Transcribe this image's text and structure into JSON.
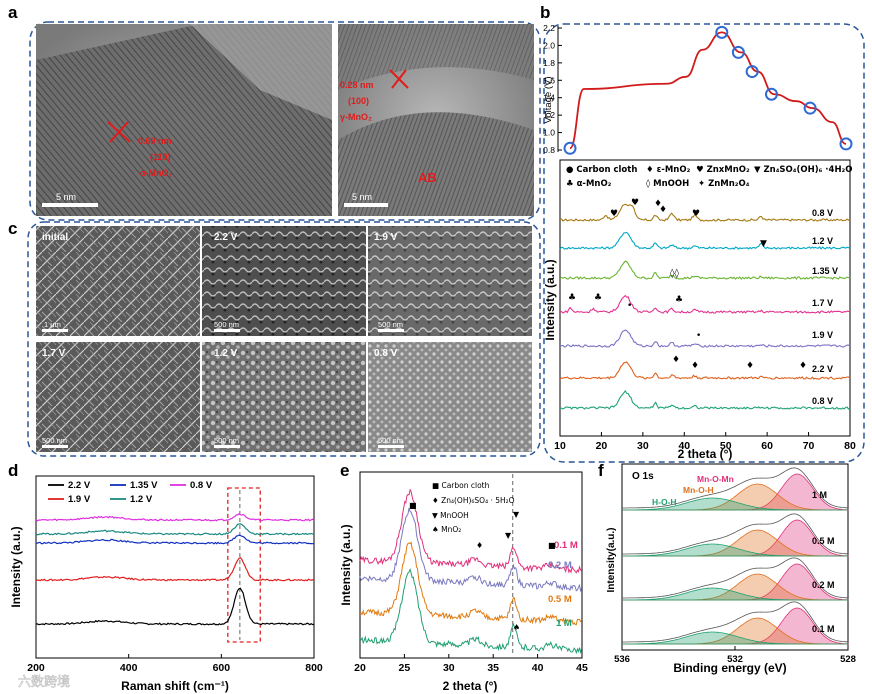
{
  "figure": {
    "panel_letters": [
      "a",
      "b",
      "c",
      "d",
      "e",
      "f"
    ],
    "watermark": "六数跨境"
  },
  "panel_a": {
    "left_image": {
      "annotation": [
        "0.69 nm",
        "(110)",
        "α-MnO₂"
      ],
      "scale_bar": "5 nm"
    },
    "right_image": {
      "annotation": [
        "0.28 nm",
        "(100)",
        "γ-MnO₂"
      ],
      "label": "AB",
      "scale_bar": "5 nm"
    }
  },
  "panel_c": {
    "tiles": [
      {
        "label": "initial",
        "scale_bar": "1 μm"
      },
      {
        "label": "2.2 V",
        "scale_bar": "500 nm"
      },
      {
        "label": "1.9 V",
        "scale_bar": "500 nm"
      },
      {
        "label": "1.7 V",
        "scale_bar": "500 nm"
      },
      {
        "label": "1.2 V",
        "scale_bar": "500 nm"
      },
      {
        "label": "0.8 V",
        "scale_bar": "500 nm"
      }
    ]
  },
  "chart_data": [
    {
      "id": "b-top",
      "type": "line",
      "title": "",
      "xlabel": "",
      "ylabel": "Voltage (V)",
      "ylim": [
        0.8,
        2.2
      ],
      "yticks": [
        "0.8",
        "1.0",
        "1.2",
        "1.4",
        "1.6",
        "1.8",
        "2.0",
        "2.2"
      ],
      "series": [
        {
          "name": "charge-discharge",
          "x": [
            0,
            0.05,
            0.35,
            0.42,
            0.48,
            0.55,
            0.62,
            0.68,
            0.74,
            0.82,
            0.88,
            0.95,
            1.0
          ],
          "y": [
            0.82,
            1.5,
            1.56,
            1.64,
            1.95,
            2.15,
            1.92,
            1.7,
            1.44,
            1.36,
            1.28,
            1.12,
            0.87
          ]
        }
      ],
      "markers": [
        {
          "x": 0.0,
          "y": 0.82
        },
        {
          "x": 0.55,
          "y": 2.15
        },
        {
          "x": 0.61,
          "y": 1.92
        },
        {
          "x": 0.66,
          "y": 1.7
        },
        {
          "x": 0.73,
          "y": 1.44
        },
        {
          "x": 0.87,
          "y": 1.28
        },
        {
          "x": 1.0,
          "y": 0.87
        }
      ]
    },
    {
      "id": "b-bottom",
      "type": "line",
      "xlabel": "2 theta (°)",
      "ylabel": "Intensity (a.u.)",
      "xlim": [
        10,
        80
      ],
      "xticks": [
        "10",
        "20",
        "30",
        "40",
        "50",
        "60",
        "70",
        "80"
      ],
      "legend": [
        {
          "symbol": "●",
          "text": "Carbon cloth"
        },
        {
          "symbol": "♦",
          "text": "ε-MnO₂"
        },
        {
          "symbol": "♥",
          "text": "ZnxMnO₂"
        },
        {
          "symbol": "▼",
          "text": "Zn₄SO₄(OH)₆ ·4H₂O"
        },
        {
          "symbol": "♣",
          "text": "α-MnO₂"
        },
        {
          "symbol": "◊",
          "text": "MnOOH"
        },
        {
          "symbol": "✦",
          "text": "ZnMn₂O₄"
        }
      ],
      "series": [
        {
          "name": "0.8 V",
          "color": "#a57a12"
        },
        {
          "name": "1.2 V",
          "color": "#00a8c8"
        },
        {
          "name": "1.35 V",
          "color": "#6ab52e"
        },
        {
          "name": "1.7 V",
          "color": "#e2338f"
        },
        {
          "name": "1.9 V",
          "color": "#7a72c4"
        },
        {
          "name": "2.2 V",
          "color": "#e0601a"
        },
        {
          "name": "0.8 V",
          "color": "#20a37a"
        }
      ],
      "peaks_deg": [
        26,
        37,
        42,
        56,
        66
      ]
    },
    {
      "id": "d",
      "type": "line",
      "xlabel": "Raman shift (cm⁻¹)",
      "ylabel": "Intensity (a.u.)",
      "xlim": [
        200,
        800
      ],
      "xticks": [
        "200",
        "400",
        "600",
        "800"
      ],
      "peak_cm": 640,
      "series": [
        {
          "name": "2.2 V",
          "color": "#000000"
        },
        {
          "name": "1.9 V",
          "color": "#e02020"
        },
        {
          "name": "1.35 V",
          "color": "#1030c0"
        },
        {
          "name": "1.2 V",
          "color": "#1a8a80"
        },
        {
          "name": "0.8 V",
          "color": "#e030e0"
        }
      ]
    },
    {
      "id": "e",
      "type": "line",
      "xlabel": "2 theta (°)",
      "ylabel": "Intensity (a.u.)",
      "xlim": [
        20,
        45
      ],
      "xticks": [
        "20",
        "25",
        "30",
        "35",
        "40",
        "45"
      ],
      "legend": [
        {
          "symbol": "■",
          "text": "Carbon cloth"
        },
        {
          "symbol": "♦",
          "text": "Zn₄(OH)₆SO₄ · 5H₂O"
        },
        {
          "symbol": "▼",
          "text": "MnOOH"
        },
        {
          "symbol": "♠",
          "text": "MnO₂"
        }
      ],
      "series": [
        {
          "name": "0.1 M",
          "color": "#e0307a"
        },
        {
          "name": "0.2 M",
          "color": "#7a7ac0"
        },
        {
          "name": "0.5 M",
          "color": "#e07a10"
        },
        {
          "name": "1 M",
          "color": "#20a070"
        }
      ]
    },
    {
      "id": "f",
      "type": "area",
      "title": "O 1s",
      "xlabel": "Binding energy (eV)",
      "ylabel": "Intensity(a.u.)",
      "xlim": [
        536,
        528
      ],
      "xticks": [
        "536",
        "532",
        "528"
      ],
      "components": [
        {
          "name": "Mn-O-Mn",
          "color": "#e0307a",
          "center_eV": 529.8
        },
        {
          "name": "Mn-O-H",
          "color": "#e07020",
          "center_eV": 531.2
        },
        {
          "name": "H-O-H",
          "color": "#20a070",
          "center_eV": 532.8
        }
      ],
      "series": [
        {
          "name": "1 M"
        },
        {
          "name": "0.5 M"
        },
        {
          "name": "0.2 M"
        },
        {
          "name": "0.1 M"
        }
      ]
    }
  ]
}
